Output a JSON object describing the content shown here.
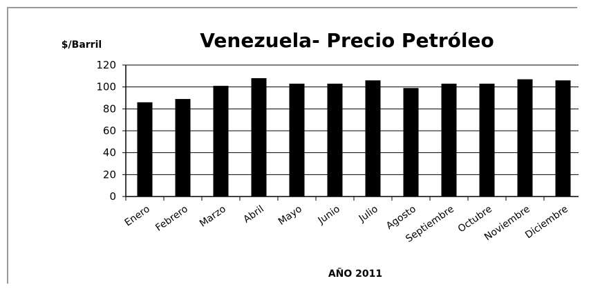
{
  "chart_data": {
    "type": "bar",
    "title": "Venezuela- Precio Petróleo",
    "ylabel": "$/Barril",
    "xlabel": "AÑO 2011",
    "categories": [
      "Enero",
      "Febrero",
      "Marzo",
      "Abril",
      "Mayo",
      "Junio",
      "Julio",
      "Agosto",
      "Septiembre",
      "Octubre",
      "Noviembre",
      "Diciembre"
    ],
    "values": [
      86,
      89,
      101,
      108,
      103,
      103,
      106,
      99,
      103,
      103,
      107,
      106
    ],
    "ylim": [
      0,
      120
    ],
    "yticks": [
      "0",
      "20",
      "40",
      "60",
      "80",
      "100",
      "120"
    ],
    "grid": "horizontal",
    "bar_color": "#000000"
  }
}
